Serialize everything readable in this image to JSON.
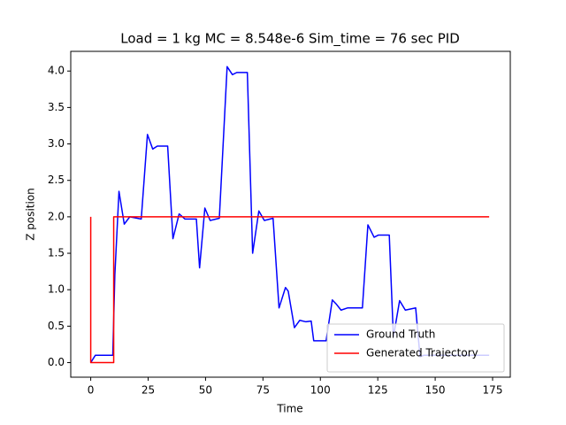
{
  "chart_data": {
    "type": "line",
    "title": "Load = 1 kg MC = 8.548e-6 Sim_time = 76 sec PID",
    "x_label": "Time",
    "y_label": "Z position",
    "xlim": [
      -8.7,
      182.7
    ],
    "ylim": [
      -0.2,
      4.27
    ],
    "xticks": [
      0,
      25,
      50,
      75,
      100,
      125,
      150,
      175
    ],
    "yticks": [
      {
        "value": 0,
        "label": "0.0"
      },
      {
        "value": 0.5,
        "label": "0.5"
      },
      {
        "value": 1,
        "label": "1.0"
      },
      {
        "value": 1.5,
        "label": "1.5"
      },
      {
        "value": 2,
        "label": "2.0"
      },
      {
        "value": 2.5,
        "label": "2.5"
      },
      {
        "value": 3,
        "label": "3.0"
      },
      {
        "value": 3.5,
        "label": "3.5"
      },
      {
        "value": 4,
        "label": "4.0"
      }
    ],
    "legend": "lower right",
    "series": [
      {
        "name": "Ground Truth",
        "color": "#0000ff",
        "x": [
          0,
          2,
          9.6,
          10.5,
          12.3,
          14.6,
          17,
          22,
          24.7,
          27,
          29,
          33.5,
          35.8,
          38.5,
          41,
          46,
          47.4,
          49.7,
          52,
          56,
          59.4,
          61.7,
          63.6,
          68.2,
          70.5,
          73.2,
          75.6,
          79.4,
          82,
          84.8,
          86,
          88.7,
          91,
          93.7,
          96,
          97.1,
          102.5,
          105.2,
          107,
          109,
          111.8,
          118.3,
          120.7,
          123.4,
          125.3,
          130,
          131.8,
          134.5,
          137,
          141.5,
          143.4,
          145,
          173.5
        ],
        "values": [
          0,
          0.1,
          0.1,
          1.2,
          2.35,
          1.9,
          2.0,
          1.97,
          3.13,
          2.93,
          2.97,
          2.97,
          1.7,
          2.04,
          1.97,
          1.97,
          1.3,
          2.12,
          1.95,
          1.98,
          4.06,
          3.95,
          3.98,
          3.98,
          1.5,
          2.08,
          1.95,
          1.98,
          0.75,
          1.03,
          0.98,
          0.48,
          0.58,
          0.56,
          0.57,
          0.3,
          0.3,
          0.86,
          0.8,
          0.72,
          0.75,
          0.75,
          1.89,
          1.72,
          1.75,
          1.75,
          0.35,
          0.85,
          0.72,
          0.75,
          0.08,
          0.1,
          0.1
        ]
      },
      {
        "name": "Generated Trajectory",
        "color": "#ff0000",
        "x": [
          0,
          0,
          10,
          10,
          173.5
        ],
        "values": [
          2,
          0,
          0,
          2,
          2
        ]
      }
    ]
  }
}
